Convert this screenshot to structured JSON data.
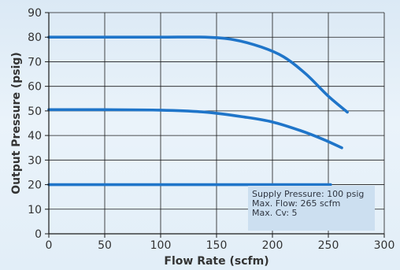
{
  "chart_data": {
    "type": "line",
    "xlabel": "Flow Rate (scfm)",
    "ylabel": "Output Pressure (psig)",
    "xlim": [
      0,
      300
    ],
    "ylim": [
      0,
      90
    ],
    "x_ticks": [
      0,
      50,
      100,
      150,
      200,
      250,
      300
    ],
    "y_ticks": [
      0,
      10,
      20,
      30,
      40,
      50,
      60,
      70,
      80,
      90
    ],
    "grid": true,
    "legend": "none",
    "colors": {
      "series": "#1f75c9",
      "grid": "#1a1a1a",
      "note_box": "#ccdff0"
    },
    "series": [
      {
        "x": [
          0,
          50,
          100,
          140,
          165,
          190,
          210,
          230,
          250,
          267
        ],
        "values": [
          80,
          80,
          80,
          80,
          79,
          76,
          72,
          65,
          56,
          49.5
        ]
      },
      {
        "x": [
          0,
          50,
          100,
          140,
          175,
          200,
          225,
          245,
          262
        ],
        "values": [
          50.5,
          50.5,
          50.3,
          49.5,
          47.5,
          45.5,
          42,
          38.5,
          35
        ]
      },
      {
        "x": [
          0,
          100,
          200,
          252
        ],
        "values": [
          20,
          20,
          20,
          20
        ]
      }
    ],
    "annotation": {
      "lines": [
        "Supply Pressure: 100 psig",
        "Max. Flow: 265 scfm",
        "Max. Cv: 5"
      ]
    }
  }
}
